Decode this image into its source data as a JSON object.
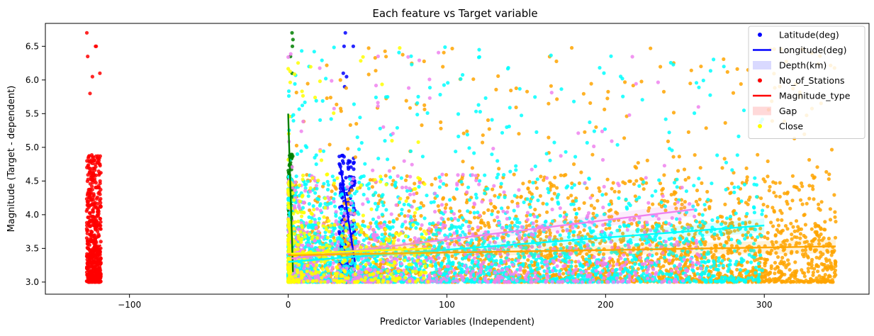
{
  "chart_data": {
    "type": "scatter",
    "title": "Each feature vs Target variable",
    "xlabel": "Predictor Variables (Independent)",
    "ylabel": "Magnitude (Target - dependent)",
    "xlim": [
      -153,
      366
    ],
    "ylim": [
      2.82,
      6.84
    ],
    "xticks": [
      -100,
      0,
      100,
      200,
      300
    ],
    "yticks": [
      3.0,
      3.5,
      4.0,
      4.5,
      5.0,
      5.5,
      6.0,
      6.5
    ],
    "xtick_labels": [
      "−100",
      "0",
      "100",
      "200",
      "300"
    ],
    "ytick_labels": [
      "3.0",
      "3.5",
      "4.0",
      "4.5",
      "5.0",
      "5.5",
      "6.0",
      "6.5"
    ],
    "grid": false,
    "legend_position": "top-right",
    "legend": [
      {
        "label": "Latitude(deg)",
        "kind": "point",
        "color": "#0000ff"
      },
      {
        "label": "Longitude(deg)",
        "kind": "line",
        "color": "#0000ff"
      },
      {
        "label": "Depth(km)",
        "kind": "band",
        "color": "#0000ff"
      },
      {
        "label": "No_of_Stations",
        "kind": "point",
        "color": "#ff0000"
      },
      {
        "label": "Magnitude_type",
        "kind": "line",
        "color": "#ff0000"
      },
      {
        "label": "Gap",
        "kind": "band",
        "color": "#ff0000"
      },
      {
        "label": "Close",
        "kind": "point",
        "color": "#ffff00"
      }
    ],
    "series": [
      {
        "color": "#ff0000",
        "x_range": [
          -127,
          -118
        ],
        "y_range": [
          3.0,
          6.7
        ],
        "count": 520,
        "dist": "dense",
        "y_extra": [
          6.7,
          6.5,
          6.5,
          6.35,
          6.1,
          6.05,
          5.8
        ]
      },
      {
        "color": "#0000ff",
        "x_range": [
          32,
          42
        ],
        "y_range": [
          3.0,
          6.7
        ],
        "count": 240,
        "dist": "dense",
        "y_extra": [
          6.7,
          6.5,
          6.5,
          6.1,
          6.05,
          5.9
        ]
      },
      {
        "color": "#008000",
        "x_range": [
          0,
          3
        ],
        "y_range": [
          3.0,
          6.7
        ],
        "count": 160,
        "dist": "dense",
        "y_extra": [
          6.7,
          6.6,
          6.5,
          6.35,
          6.1
        ]
      },
      {
        "color": "#ffa500",
        "x_range": [
          0,
          345
        ],
        "y_range": [
          3.0,
          6.5
        ],
        "count": 2600,
        "dist": "wide"
      },
      {
        "color": "#00ffff",
        "x_range": [
          0,
          300
        ],
        "y_range": [
          3.0,
          6.5
        ],
        "count": 2300,
        "dist": "left"
      },
      {
        "color": "#ee82ee",
        "x_range": [
          0,
          260
        ],
        "y_range": [
          3.0,
          6.7
        ],
        "count": 900,
        "dist": "left"
      },
      {
        "color": "#ffff00",
        "x_range": [
          0,
          90
        ],
        "y_range": [
          3.0,
          6.7
        ],
        "count": 420,
        "dist": "veryleft"
      }
    ],
    "regressions": [
      {
        "color": "#ff0000",
        "x": [
          -127,
          -118
        ],
        "y": [
          3.4,
          3.55
        ]
      },
      {
        "color": "#0000ff",
        "x": [
          33,
          42
        ],
        "y": [
          4.7,
          3.3
        ]
      },
      {
        "color": "#008000",
        "x": [
          0,
          3
        ],
        "y": [
          5.5,
          3.15
        ]
      },
      {
        "color": "#ee82ee",
        "x": [
          2,
          256
        ],
        "y": [
          3.35,
          4.08
        ]
      },
      {
        "color": "#00ffff",
        "x": [
          0,
          300
        ],
        "y": [
          3.3,
          3.84
        ]
      },
      {
        "color": "#ffa500",
        "x": [
          0,
          345
        ],
        "y": [
          3.4,
          3.53
        ]
      },
      {
        "color": "#ffff00",
        "x": [
          2,
          90
        ],
        "y": [
          3.42,
          3.5
        ]
      }
    ]
  }
}
